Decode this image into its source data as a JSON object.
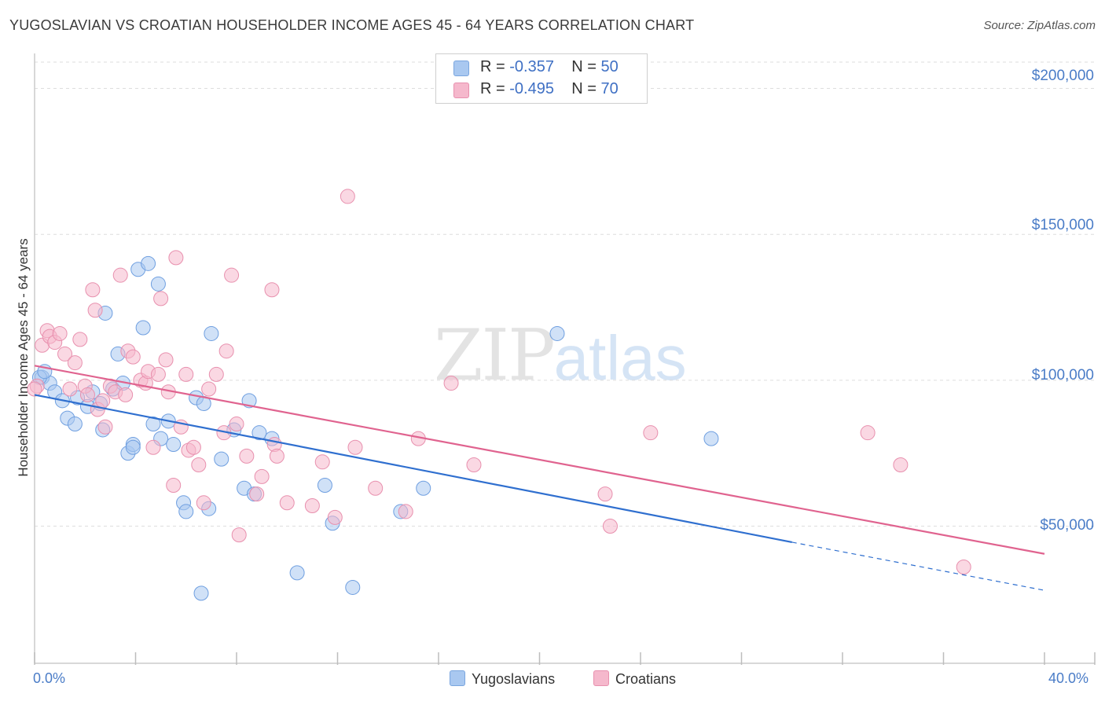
{
  "header": {
    "title": "YUGOSLAVIAN VS CROATIAN HOUSEHOLDER INCOME AGES 45 - 64 YEARS CORRELATION CHART",
    "source": "Source: ZipAtlas.com"
  },
  "watermark": {
    "part1": "ZIP",
    "part2": "atlas"
  },
  "legend_top": {
    "rows": [
      {
        "r_label": "R =",
        "r_value": "-0.357",
        "n_label": "N =",
        "n_value": "50",
        "color": "#a9c8f0"
      },
      {
        "r_label": "R =",
        "r_value": "-0.495",
        "n_label": "N =",
        "n_value": "70",
        "color": "#f5b8cc"
      }
    ]
  },
  "legend_bottom": [
    {
      "label": "Yugoslavians",
      "color": "#a9c8f0"
    },
    {
      "label": "Croatians",
      "color": "#f5b8cc"
    }
  ],
  "chart_data": {
    "type": "scatter",
    "xlabel": "",
    "ylabel": "Householder Income Ages 45 - 64 years",
    "xlim": [
      0,
      40
    ],
    "ylim": [
      3000,
      212000
    ],
    "x_tick_labels": [
      "0.0%",
      "40.0%"
    ],
    "y_ticks": [
      {
        "value": 50000,
        "label": "$50,000"
      },
      {
        "value": 100000,
        "label": "$100,000"
      },
      {
        "value": 150000,
        "label": "$150,000"
      },
      {
        "value": 200000,
        "label": "$200,000"
      }
    ],
    "grid": "horizontal-dashed",
    "series": [
      {
        "name": "Yugoslavians",
        "color": "#a9c8f0",
        "line_color": "#2f6fcf",
        "trend": {
          "x0": 0,
          "y0": 95000,
          "x1": 30,
          "y1": 44500,
          "dash_to_x": 40,
          "dash_to_y": 28000
        },
        "points": [
          [
            0.3,
            101000
          ],
          [
            0.6,
            99000
          ],
          [
            0.8,
            96000
          ],
          [
            1.1,
            93000
          ],
          [
            1.3,
            87000
          ],
          [
            1.6,
            85000
          ],
          [
            1.7,
            94000
          ],
          [
            2.1,
            91000
          ],
          [
            2.3,
            96000
          ],
          [
            2.6,
            92000
          ],
          [
            2.7,
            83000
          ],
          [
            2.8,
            123000
          ],
          [
            3.1,
            97000
          ],
          [
            3.3,
            109000
          ],
          [
            3.5,
            99000
          ],
          [
            3.7,
            75000
          ],
          [
            3.9,
            78000
          ],
          [
            4.1,
            138000
          ],
          [
            4.3,
            118000
          ],
          [
            4.5,
            140000
          ],
          [
            4.7,
            85000
          ],
          [
            4.9,
            133000
          ],
          [
            5.0,
            80000
          ],
          [
            5.3,
            86000
          ],
          [
            5.5,
            78000
          ],
          [
            5.9,
            58000
          ],
          [
            6.0,
            55000
          ],
          [
            6.4,
            94000
          ],
          [
            6.6,
            27000
          ],
          [
            6.7,
            92000
          ],
          [
            6.9,
            56000
          ],
          [
            7.0,
            116000
          ],
          [
            7.4,
            73000
          ],
          [
            7.9,
            83000
          ],
          [
            8.3,
            63000
          ],
          [
            8.5,
            93000
          ],
          [
            8.7,
            61000
          ],
          [
            8.9,
            82000
          ],
          [
            9.4,
            80000
          ],
          [
            10.4,
            34000
          ],
          [
            11.5,
            64000
          ],
          [
            11.8,
            51000
          ],
          [
            12.6,
            29000
          ],
          [
            14.5,
            55000
          ],
          [
            15.4,
            63000
          ],
          [
            20.7,
            116000
          ],
          [
            26.8,
            80000
          ],
          [
            0.2,
            101000
          ],
          [
            0.4,
            103000
          ],
          [
            3.9,
            77000
          ]
        ]
      },
      {
        "name": "Croatians",
        "color": "#f5b8cc",
        "line_color": "#e0638f",
        "trend": {
          "x0": 0,
          "y0": 105000,
          "x1": 40,
          "y1": 40500
        },
        "points": [
          [
            0.1,
            98000
          ],
          [
            0.3,
            112000
          ],
          [
            0.5,
            117000
          ],
          [
            0.6,
            115000
          ],
          [
            0.8,
            113000
          ],
          [
            1.0,
            116000
          ],
          [
            1.2,
            109000
          ],
          [
            1.4,
            97000
          ],
          [
            1.6,
            106000
          ],
          [
            1.8,
            114000
          ],
          [
            2.0,
            98000
          ],
          [
            2.1,
            95000
          ],
          [
            2.3,
            131000
          ],
          [
            2.4,
            124000
          ],
          [
            2.5,
            90000
          ],
          [
            2.7,
            93000
          ],
          [
            2.8,
            84000
          ],
          [
            3.0,
            98000
          ],
          [
            3.2,
            96000
          ],
          [
            3.4,
            136000
          ],
          [
            3.6,
            95000
          ],
          [
            3.7,
            110000
          ],
          [
            3.9,
            108000
          ],
          [
            4.2,
            100000
          ],
          [
            4.4,
            99000
          ],
          [
            4.5,
            103000
          ],
          [
            4.7,
            77000
          ],
          [
            4.9,
            102000
          ],
          [
            5.0,
            128000
          ],
          [
            5.2,
            107000
          ],
          [
            5.3,
            96000
          ],
          [
            5.5,
            64000
          ],
          [
            5.6,
            142000
          ],
          [
            5.8,
            84000
          ],
          [
            6.0,
            102000
          ],
          [
            6.1,
            76000
          ],
          [
            6.3,
            77000
          ],
          [
            6.5,
            71000
          ],
          [
            6.7,
            58000
          ],
          [
            6.9,
            97000
          ],
          [
            7.2,
            102000
          ],
          [
            7.6,
            110000
          ],
          [
            7.8,
            136000
          ],
          [
            7.5,
            82000
          ],
          [
            8.0,
            85000
          ],
          [
            8.1,
            47000
          ],
          [
            8.4,
            74000
          ],
          [
            8.8,
            61000
          ],
          [
            9.0,
            67000
          ],
          [
            9.4,
            131000
          ],
          [
            9.5,
            78000
          ],
          [
            9.6,
            74000
          ],
          [
            10.0,
            58000
          ],
          [
            11.0,
            57000
          ],
          [
            11.4,
            72000
          ],
          [
            11.9,
            53000
          ],
          [
            12.4,
            163000
          ],
          [
            12.7,
            77000
          ],
          [
            13.5,
            63000
          ],
          [
            14.7,
            55000
          ],
          [
            15.2,
            80000
          ],
          [
            16.5,
            99000
          ],
          [
            17.4,
            71000
          ],
          [
            22.6,
            61000
          ],
          [
            22.8,
            50000
          ],
          [
            24.4,
            82000
          ],
          [
            33.0,
            82000
          ],
          [
            34.3,
            71000
          ],
          [
            36.8,
            36000
          ],
          [
            0.0,
            97000
          ]
        ]
      }
    ]
  }
}
